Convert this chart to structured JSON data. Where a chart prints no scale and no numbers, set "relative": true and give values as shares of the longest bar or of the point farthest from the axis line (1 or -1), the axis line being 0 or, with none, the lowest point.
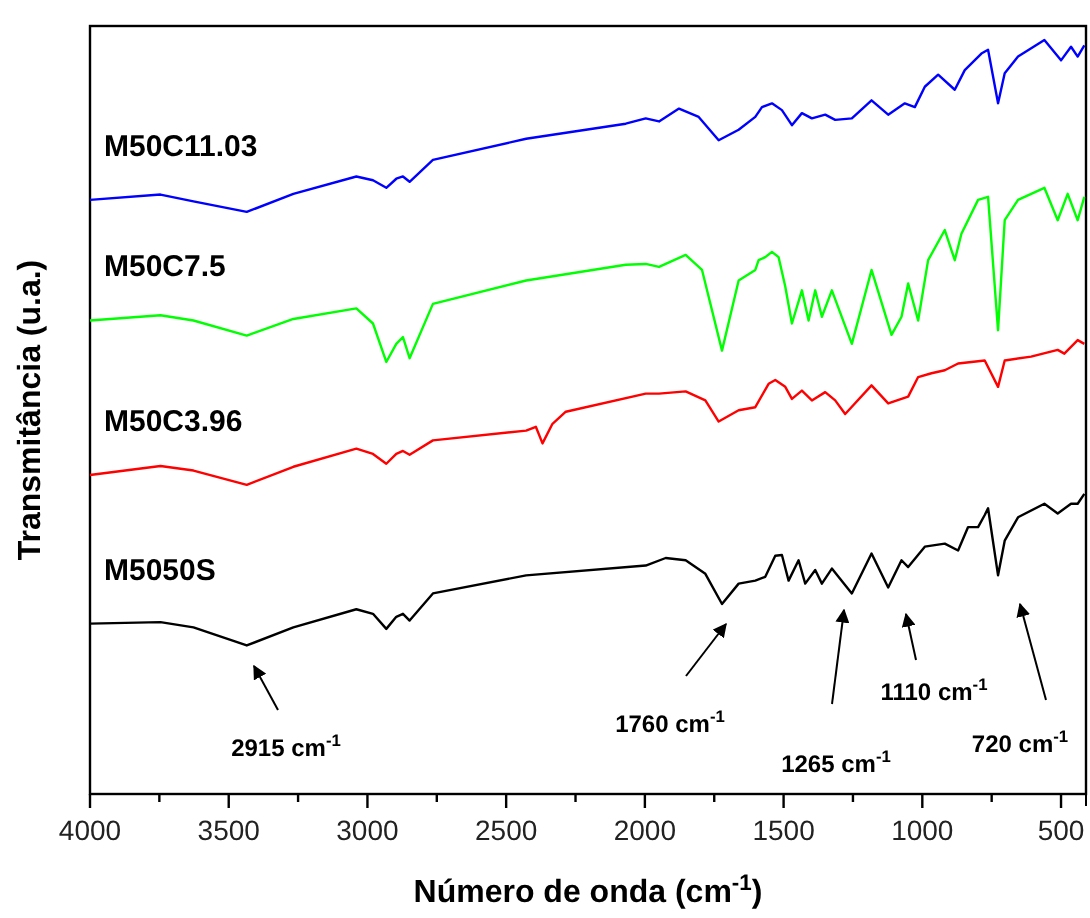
{
  "chart_data": {
    "type": "line",
    "relative": true,
    "xlabel": "Número de onda (cm$^{-1}$)",
    "ylabel": "Transmitância (u.a.)",
    "xlim": [
      4000,
      410
    ],
    "xticks": [
      4000,
      {
        "value": 3750,
        "label": null
      },
      3500,
      {
        "value": 3250,
        "label": null
      },
      3000,
      {
        "value": 2750,
        "label": null
      },
      2500,
      {
        "value": 2250,
        "label": null
      },
      2000,
      {
        "value": 1750,
        "label": null
      },
      1500,
      {
        "value": 1250,
        "label": null
      },
      1000,
      {
        "value": 750,
        "label": null
      },
      500
    ],
    "grid": false,
    "marker": "none",
    "line_style": "solid",
    "annotations": [
      "2915 cm$^{-1}$",
      "1760 cm$^{-1}$",
      "1265 cm$^{-1}$",
      "1110 cm$^{-1}$",
      "720 cm$^{-1}$"
    ],
    "series": [
      {
        "name": "M50C11.03",
        "color": "#0000ff",
        "x": [
          4000,
          3746,
          3627,
          3435,
          3267,
          3040,
          2980,
          2932,
          2896,
          2872,
          2848,
          2764,
          2428,
          2069,
          1997,
          1949,
          1877,
          1806,
          1734,
          1662,
          1602,
          1578,
          1542,
          1506,
          1470,
          1434,
          1398,
          1350,
          1314,
          1254,
          1183,
          1123,
          1063,
          1027,
          991,
          943,
          883,
          847,
          787,
          763,
          727,
          703,
          655,
          560,
          500,
          464,
          440,
          416
        ],
        "values": [
          0.788,
          0.795,
          0.786,
          0.772,
          0.796,
          0.819,
          0.814,
          0.804,
          0.816,
          0.819,
          0.812,
          0.841,
          0.869,
          0.889,
          0.896,
          0.892,
          0.909,
          0.898,
          0.867,
          0.881,
          0.898,
          0.911,
          0.916,
          0.907,
          0.887,
          0.903,
          0.896,
          0.901,
          0.894,
          0.896,
          0.92,
          0.901,
          0.916,
          0.911,
          0.938,
          0.954,
          0.934,
          0.96,
          0.982,
          0.987,
          0.916,
          0.956,
          0.978,
          1,
          0.973,
          0.991,
          0.978,
          0.993
        ]
      },
      {
        "name": "M50C7.5",
        "color": "#00ff00",
        "x": [
          4000,
          3746,
          3627,
          3435,
          3267,
          3040,
          2980,
          2932,
          2896,
          2872,
          2848,
          2764,
          2428,
          2069,
          1997,
          1949,
          1853,
          1794,
          1722,
          1662,
          1602,
          1590,
          1566,
          1542,
          1518,
          1494,
          1470,
          1434,
          1410,
          1386,
          1362,
          1326,
          1254,
          1183,
          1111,
          1075,
          1051,
          1015,
          979,
          919,
          883,
          859,
          799,
          763,
          727,
          703,
          655,
          560,
          512,
          476,
          440,
          416
        ],
        "values": [
          0.628,
          0.635,
          0.628,
          0.608,
          0.63,
          0.644,
          0.624,
          0.573,
          0.597,
          0.606,
          0.578,
          0.65,
          0.681,
          0.702,
          0.703,
          0.699,
          0.715,
          0.695,
          0.588,
          0.681,
          0.695,
          0.708,
          0.712,
          0.719,
          0.712,
          0.673,
          0.624,
          0.668,
          0.628,
          0.668,
          0.633,
          0.668,
          0.597,
          0.695,
          0.609,
          0.633,
          0.677,
          0.628,
          0.708,
          0.748,
          0.708,
          0.743,
          0.788,
          0.792,
          0.615,
          0.761,
          0.788,
          0.804,
          0.761,
          0.796,
          0.761,
          0.792
        ]
      },
      {
        "name": "M50C3.96",
        "color": "#ff0000",
        "x": [
          4000,
          3746,
          3627,
          3435,
          3267,
          3040,
          2980,
          2932,
          2896,
          2872,
          2848,
          2764,
          2428,
          2393,
          2369,
          2333,
          2285,
          1997,
          1949,
          1853,
          1782,
          1734,
          1662,
          1602,
          1554,
          1530,
          1494,
          1470,
          1434,
          1398,
          1350,
          1314,
          1278,
          1183,
          1123,
          1051,
          1015,
          967,
          919,
          871,
          775,
          727,
          703,
          608,
          512,
          488,
          440,
          416
        ],
        "values": [
          0.423,
          0.435,
          0.429,
          0.41,
          0.434,
          0.458,
          0.451,
          0.438,
          0.451,
          0.455,
          0.45,
          0.469,
          0.482,
          0.487,
          0.465,
          0.491,
          0.507,
          0.531,
          0.531,
          0.534,
          0.522,
          0.494,
          0.509,
          0.513,
          0.544,
          0.549,
          0.54,
          0.524,
          0.535,
          0.522,
          0.533,
          0.522,
          0.504,
          0.542,
          0.518,
          0.527,
          0.553,
          0.558,
          0.562,
          0.571,
          0.575,
          0.54,
          0.575,
          0.58,
          0.589,
          0.584,
          0.602,
          0.597
        ]
      },
      {
        "name": "M5050S",
        "color": "#000000",
        "x": [
          4000,
          3746,
          3627,
          3435,
          3267,
          3040,
          2980,
          2932,
          2896,
          2872,
          2848,
          2764,
          2428,
          1997,
          1925,
          1853,
          1782,
          1722,
          1662,
          1602,
          1566,
          1530,
          1506,
          1482,
          1446,
          1422,
          1386,
          1362,
          1326,
          1254,
          1183,
          1123,
          1075,
          1051,
          991,
          919,
          871,
          835,
          799,
          775,
          763,
          727,
          703,
          655,
          560,
          512,
          464,
          440,
          416
        ],
        "values": [
          0.226,
          0.228,
          0.221,
          0.197,
          0.221,
          0.245,
          0.239,
          0.219,
          0.235,
          0.239,
          0.23,
          0.266,
          0.29,
          0.303,
          0.313,
          0.31,
          0.292,
          0.252,
          0.279,
          0.283,
          0.288,
          0.316,
          0.317,
          0.283,
          0.31,
          0.279,
          0.297,
          0.279,
          0.299,
          0.266,
          0.319,
          0.274,
          0.31,
          0.301,
          0.328,
          0.332,
          0.323,
          0.354,
          0.354,
          0.37,
          0.379,
          0.29,
          0.336,
          0.367,
          0.385,
          0.372,
          0.385,
          0.385,
          0.398
        ]
      }
    ]
  }
}
